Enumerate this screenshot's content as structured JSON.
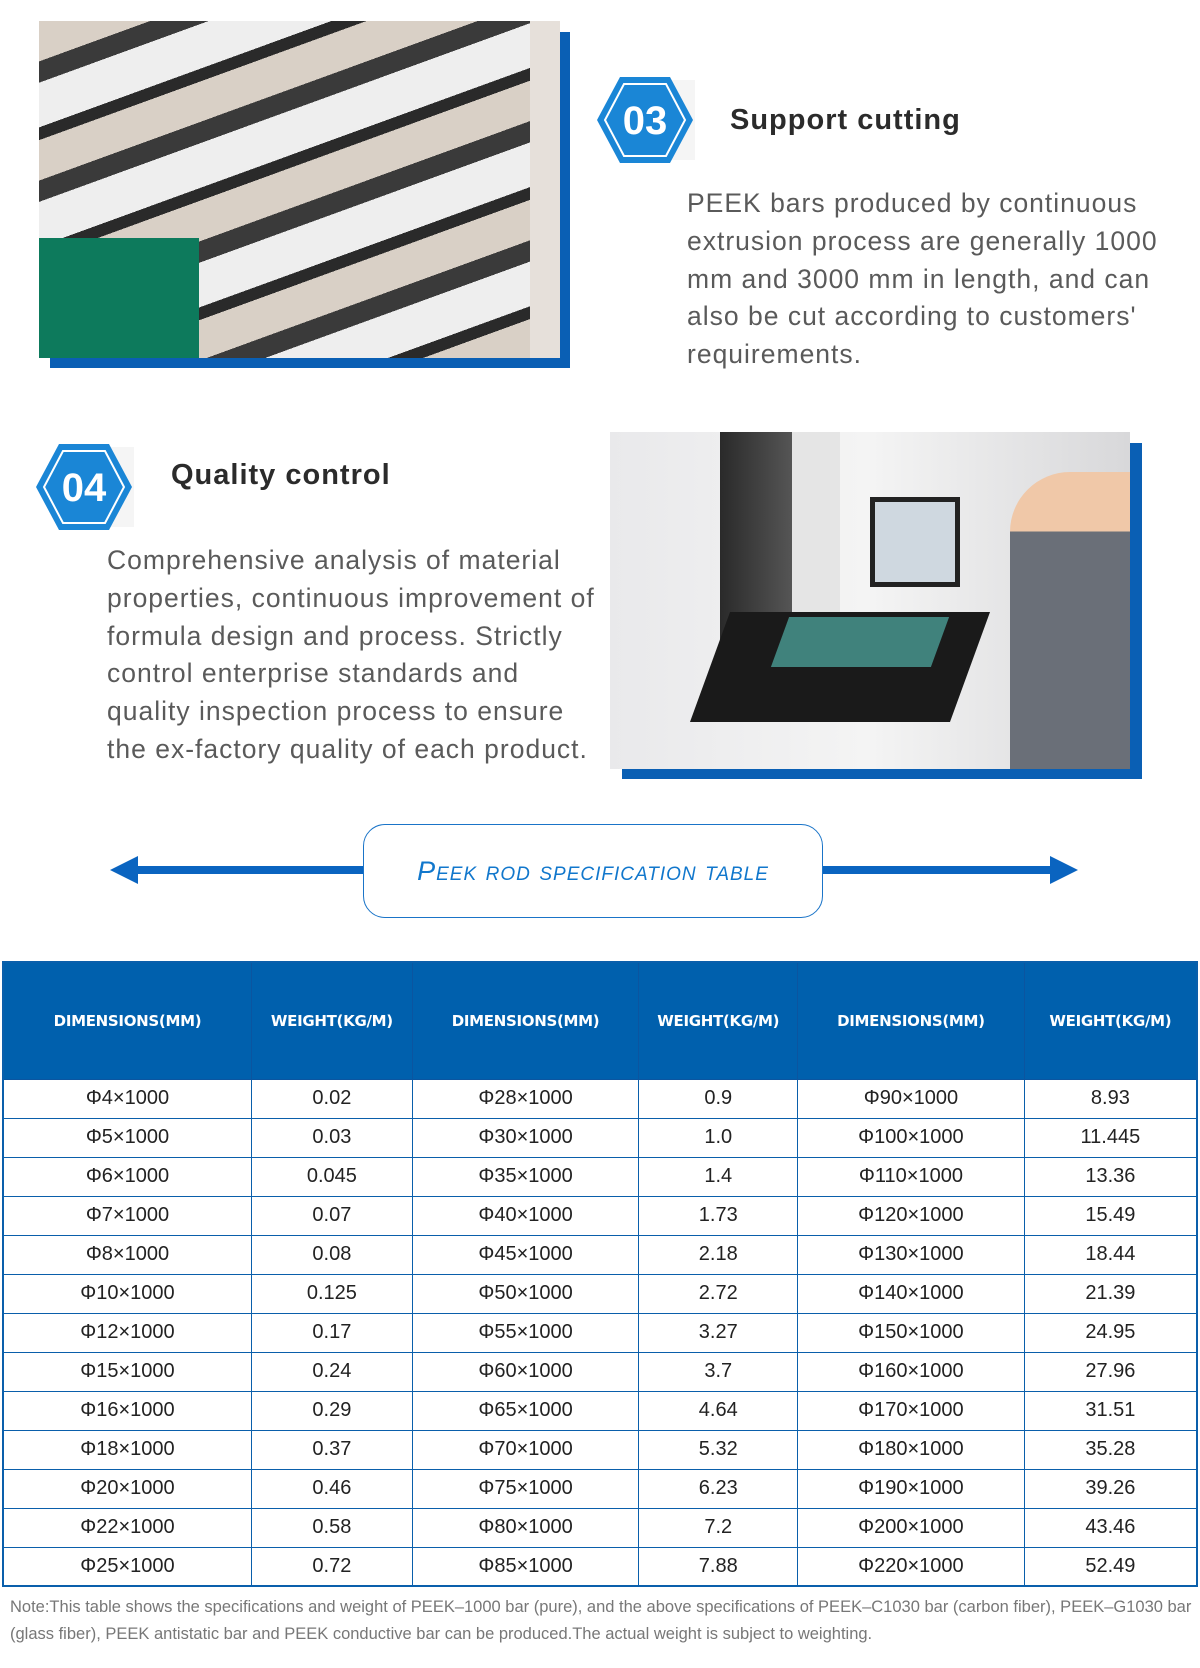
{
  "section03": {
    "number": "03",
    "title": "Support cutting",
    "text": "PEEK bars produced by continuous extrusion process are generally 1000 mm and 3000 mm in length, and can also be cut according to customers' requirements."
  },
  "section04": {
    "number": "04",
    "title": "Quality control",
    "text": "Comprehensive analysis of material properties, continuous improvement of formula design and process. Strictly control enterprise standards and quality inspection process to ensure the ex-factory quality of each product."
  },
  "banner": {
    "title": "Peek rod specification table"
  },
  "colors": {
    "accent": "#0060ad",
    "badge": "#1a86d6",
    "text": "#5a5a5a"
  },
  "table": {
    "headers": [
      "DIMENSIONS(MM)",
      "WEIGHT(KG/M)",
      "DIMENSIONS(MM)",
      "WEIGHT(KG/M)",
      "DIMENSIONS(MM)",
      "WEIGHT(KG/M)"
    ],
    "rows": [
      [
        "Φ4×1000",
        "0.02",
        "Φ28×1000",
        "0.9",
        "Φ90×1000",
        "8.93"
      ],
      [
        "Φ5×1000",
        "0.03",
        "Φ30×1000",
        "1.0",
        "Φ100×1000",
        "11.445"
      ],
      [
        "Φ6×1000",
        "0.045",
        "Φ35×1000",
        "1.4",
        "Φ110×1000",
        "13.36"
      ],
      [
        "Φ7×1000",
        "0.07",
        "Φ40×1000",
        "1.73",
        "Φ120×1000",
        "15.49"
      ],
      [
        "Φ8×1000",
        "0.08",
        "Φ45×1000",
        "2.18",
        "Φ130×1000",
        "18.44"
      ],
      [
        "Φ10×1000",
        "0.125",
        "Φ50×1000",
        "2.72",
        "Φ140×1000",
        "21.39"
      ],
      [
        "Φ12×1000",
        "0.17",
        "Φ55×1000",
        "3.27",
        "Φ150×1000",
        "24.95"
      ],
      [
        "Φ15×1000",
        "0.24",
        "Φ60×1000",
        "3.7",
        "Φ160×1000",
        "27.96"
      ],
      [
        "Φ16×1000",
        "0.29",
        "Φ65×1000",
        "4.64",
        "Φ170×1000",
        "31.51"
      ],
      [
        "Φ18×1000",
        "0.37",
        "Φ70×1000",
        "5.32",
        "Φ180×1000",
        "35.28"
      ],
      [
        "Φ20×1000",
        "0.46",
        "Φ75×1000",
        "6.23",
        "Φ190×1000",
        "39.26"
      ],
      [
        "Φ22×1000",
        "0.58",
        "Φ80×1000",
        "7.2",
        "Φ200×1000",
        "43.46"
      ],
      [
        "Φ25×1000",
        "0.72",
        "Φ85×1000",
        "7.88",
        "Φ220×1000",
        "52.49"
      ]
    ]
  },
  "note": "Note:This table shows the specifications and weight of PEEK–1000 bar (pure), and the above specifications of PEEK–C1030 bar (carbon fiber), PEEK–G1030 bar (glass fiber), PEEK antistatic bar and PEEK conductive bar can be produced.The actual weight is subject to weighting."
}
